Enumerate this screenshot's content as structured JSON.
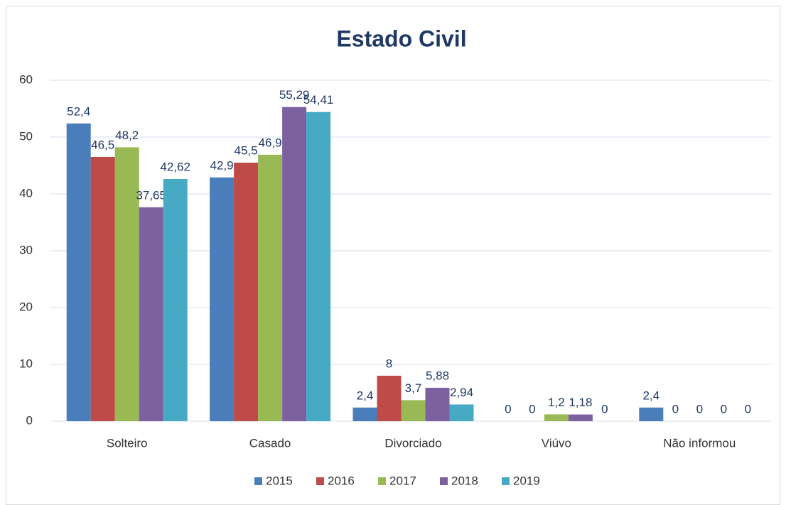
{
  "chart_data": {
    "type": "bar",
    "title": "Estado Civil",
    "categories": [
      "Solteiro",
      "Casado",
      "Divorciado",
      "Viúvo",
      "Não informou"
    ],
    "series": [
      {
        "name": "2015",
        "color": "#4a7ebb",
        "values": [
          52.4,
          42.9,
          2.4,
          0,
          2.4
        ],
        "value_labels": [
          "52,4",
          "42,9",
          "2,4",
          "0",
          "2,4"
        ]
      },
      {
        "name": "2016",
        "color": "#be4b48",
        "values": [
          46.5,
          45.5,
          8,
          0,
          0
        ],
        "value_labels": [
          "46,5",
          "45,5",
          "8",
          "0",
          "0"
        ]
      },
      {
        "name": "2017",
        "color": "#98b954",
        "values": [
          48.2,
          46.9,
          3.7,
          1.2,
          0
        ],
        "value_labels": [
          "48,2",
          "46,9",
          "3,7",
          "1,2",
          "0"
        ]
      },
      {
        "name": "2018",
        "color": "#7d60a0",
        "values": [
          37.65,
          55.29,
          5.88,
          1.18,
          0
        ],
        "value_labels": [
          "37,65",
          "55,29",
          "5,88",
          "1,18",
          "0"
        ]
      },
      {
        "name": "2019",
        "color": "#46aac5",
        "values": [
          42.62,
          54.41,
          2.94,
          0,
          0
        ],
        "value_labels": [
          "42,62",
          "54,41",
          "2,94",
          "0",
          "0"
        ]
      }
    ],
    "ylim": [
      0,
      60
    ],
    "yticks": [
      0,
      10,
      20,
      30,
      40,
      50,
      60
    ],
    "grid": true,
    "legend": "bottom"
  }
}
